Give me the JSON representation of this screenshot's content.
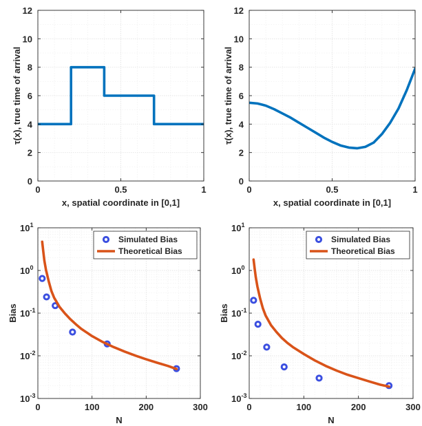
{
  "style": {
    "line_blue": "#0072BD",
    "curve_orange": "#D95319",
    "marker_blue": "#3B4FE0",
    "grid": "#e3e3e3",
    "minor_grid": "#efefef",
    "axis": "#262626"
  },
  "chart_data": [
    {
      "id": "tl",
      "type": "line",
      "xlabel": "x, spatial coordinate in [0,1]",
      "ylabel": "τ(x), true time of arrival",
      "xlim": [
        0,
        1
      ],
      "ylim": [
        0,
        12
      ],
      "xticks": [
        0,
        0.5,
        1
      ],
      "xtick_labels": [
        "0",
        "0.5",
        "1"
      ],
      "yticks": [
        0,
        2,
        4,
        6,
        8,
        10,
        12
      ],
      "ytick_labels": [
        "0",
        "2",
        "4",
        "6",
        "8",
        "10",
        "12"
      ],
      "grid": true,
      "series": [
        {
          "x": [
            0,
            0.2,
            0.2,
            0.4,
            0.4,
            0.7,
            0.7,
            1.0
          ],
          "y": [
            4,
            4,
            8,
            8,
            6,
            6,
            4,
            4
          ]
        }
      ]
    },
    {
      "id": "tr",
      "type": "line",
      "xlabel": "x, spatial coordinate in [0,1]",
      "ylabel": "τ(x), true time of arrival",
      "xlim": [
        0,
        1
      ],
      "ylim": [
        0,
        12
      ],
      "xticks": [
        0,
        0.5,
        1
      ],
      "xtick_labels": [
        "0",
        "0.5",
        "1"
      ],
      "yticks": [
        0,
        2,
        4,
        6,
        8,
        10,
        12
      ],
      "ytick_labels": [
        "0",
        "2",
        "4",
        "6",
        "8",
        "10",
        "12"
      ],
      "grid": true,
      "series": [
        {
          "x": [
            0,
            0.05,
            0.1,
            0.15,
            0.2,
            0.25,
            0.3,
            0.35,
            0.4,
            0.45,
            0.5,
            0.55,
            0.6,
            0.65,
            0.7,
            0.75,
            0.8,
            0.85,
            0.9,
            0.95,
            1.0
          ],
          "y": [
            5.5,
            5.45,
            5.3,
            5.05,
            4.75,
            4.45,
            4.1,
            3.75,
            3.4,
            3.05,
            2.75,
            2.5,
            2.35,
            2.3,
            2.4,
            2.7,
            3.3,
            4.1,
            5.1,
            6.4,
            7.9
          ]
        }
      ]
    },
    {
      "id": "bl",
      "type": "scatter",
      "xlabel": "N",
      "ylabel": "Bias",
      "xlim": [
        0,
        300
      ],
      "ylim": [
        0.001,
        10
      ],
      "yscale": "log",
      "xticks": [
        0,
        100,
        200,
        300
      ],
      "xtick_labels": [
        "0",
        "100",
        "200",
        "300"
      ],
      "yticks_exponents": [
        -3,
        -2,
        -1,
        0,
        1
      ],
      "grid": true,
      "legend_position": "top-right",
      "series": [
        {
          "name": "Simulated Bias",
          "kind": "markers",
          "x": [
            8,
            16,
            32,
            64,
            128,
            256
          ],
          "y": [
            0.65,
            0.24,
            0.15,
            0.036,
            0.019,
            0.005
          ]
        },
        {
          "name": "Theoretical Bias",
          "kind": "line",
          "x": [
            8,
            10,
            12,
            15,
            20,
            25,
            30,
            40,
            50,
            60,
            70,
            80,
            100,
            120,
            140,
            160,
            180,
            200,
            220,
            240,
            256
          ],
          "y": [
            4.7,
            2.8,
            1.7,
            1.03,
            0.56,
            0.33,
            0.23,
            0.14,
            0.098,
            0.072,
            0.055,
            0.043,
            0.029,
            0.021,
            0.016,
            0.0126,
            0.0101,
            0.0083,
            0.0069,
            0.0058,
            0.0049
          ]
        }
      ]
    },
    {
      "id": "br",
      "type": "scatter",
      "xlabel": "N",
      "ylabel": "Bias",
      "xlim": [
        0,
        300
      ],
      "ylim": [
        0.001,
        10
      ],
      "yscale": "log",
      "xticks": [
        0,
        100,
        200,
        300
      ],
      "xtick_labels": [
        "0",
        "100",
        "200",
        "300"
      ],
      "yticks_exponents": [
        -3,
        -2,
        -1,
        0,
        1
      ],
      "grid": true,
      "legend_position": "top-right",
      "series": [
        {
          "name": "Simulated Bias",
          "kind": "markers",
          "x": [
            8,
            16,
            32,
            64,
            128,
            256
          ],
          "y": [
            0.2,
            0.055,
            0.016,
            0.0055,
            0.003,
            0.002
          ]
        },
        {
          "name": "Theoretical Bias",
          "kind": "line",
          "x": [
            8,
            10,
            12,
            15,
            20,
            25,
            30,
            40,
            50,
            60,
            70,
            80,
            100,
            120,
            140,
            160,
            180,
            200,
            220,
            240,
            256
          ],
          "y": [
            1.8,
            1.1,
            0.7,
            0.42,
            0.22,
            0.13,
            0.088,
            0.052,
            0.036,
            0.026,
            0.02,
            0.016,
            0.011,
            0.0078,
            0.0058,
            0.0045,
            0.0036,
            0.003,
            0.0025,
            0.0021,
            0.0019
          ]
        }
      ]
    }
  ]
}
